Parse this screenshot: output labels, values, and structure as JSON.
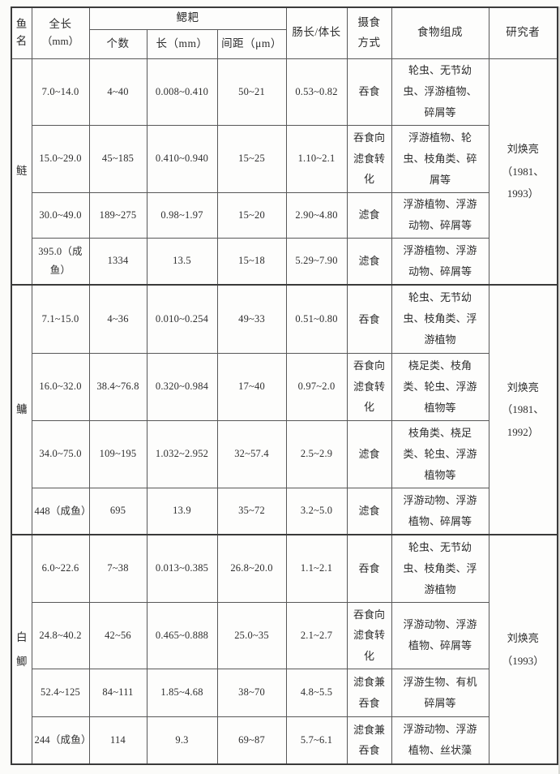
{
  "header": {
    "fish_name": "鱼名",
    "total_length": "全长",
    "total_length_unit": "（mm）",
    "gill_raker": "鳃耙",
    "raker_count": "个数",
    "raker_length": "长（mm）",
    "raker_spacing": "间距（μm）",
    "gut_body_ratio": "肠长/体长",
    "feeding_mode": "摄食方式",
    "food_composition": "食物组成",
    "researcher": "研究者"
  },
  "sections": [
    {
      "fish": "鲢",
      "researcher_name": "刘焕亮",
      "researcher_years": "（1981、1993）",
      "rows": [
        {
          "total_length": "7.0~14.0",
          "raker_count": "4~40",
          "raker_length": "0.008~0.410",
          "raker_spacing": "50~21",
          "gut_body_ratio": "0.53~0.82",
          "feeding_mode": "吞食",
          "food": "轮虫、无节幼虫、浮游植物、碎屑等"
        },
        {
          "total_length": "15.0~29.0",
          "raker_count": "45~185",
          "raker_length": "0.410~0.940",
          "raker_spacing": "15~25",
          "gut_body_ratio": "1.10~2.1",
          "feeding_mode": "吞食向滤食转化",
          "food": "浮游植物、轮虫、枝角类、碎屑等"
        },
        {
          "total_length": "30.0~49.0",
          "raker_count": "189~275",
          "raker_length": "0.98~1.97",
          "raker_spacing": "15~20",
          "gut_body_ratio": "2.90~4.80",
          "feeding_mode": "滤食",
          "food": "浮游植物、浮游动物、碎屑等"
        },
        {
          "total_length": "395.0（成鱼）",
          "raker_count": "1334",
          "raker_length": "13.5",
          "raker_spacing": "15~18",
          "gut_body_ratio": "5.29~7.90",
          "feeding_mode": "滤食",
          "food": "浮游植物、浮游动物、碎屑等"
        }
      ]
    },
    {
      "fish": "鳙",
      "researcher_name": "刘焕亮",
      "researcher_years": "（1981、1992）",
      "rows": [
        {
          "total_length": "7.1~15.0",
          "raker_count": "4~36",
          "raker_length": "0.010~0.254",
          "raker_spacing": "49~33",
          "gut_body_ratio": "0.51~0.80",
          "feeding_mode": "吞食",
          "food": "轮虫、无节幼虫、枝角类、浮游植物"
        },
        {
          "total_length": "16.0~32.0",
          "raker_count": "38.4~76.8",
          "raker_length": "0.320~0.984",
          "raker_spacing": "17~40",
          "gut_body_ratio": "0.97~2.0",
          "feeding_mode": "吞食向滤食转化",
          "food": "桡足类、枝角类、轮虫、浮游植物等"
        },
        {
          "total_length": "34.0~75.0",
          "raker_count": "109~195",
          "raker_length": "1.032~2.952",
          "raker_spacing": "32~57.4",
          "gut_body_ratio": "2.5~2.9",
          "feeding_mode": "滤食",
          "food": "枝角类、桡足类、轮虫、浮游植物等"
        },
        {
          "total_length": "448（成鱼）",
          "raker_count": "695",
          "raker_length": "13.9",
          "raker_spacing": "35~72",
          "gut_body_ratio": "3.2~5.0",
          "feeding_mode": "滤食",
          "food": "浮游动物、浮游植物、碎屑等"
        }
      ]
    },
    {
      "fish": "白鲫",
      "researcher_name": "刘焕亮",
      "researcher_years": "（1993）",
      "rows": [
        {
          "total_length": "6.0~22.6",
          "raker_count": "7~38",
          "raker_length": "0.013~0.385",
          "raker_spacing": "26.8~20.0",
          "gut_body_ratio": "1.1~2.1",
          "feeding_mode": "吞食",
          "food": "轮虫、无节幼虫、枝角类、浮游植物"
        },
        {
          "total_length": "24.8~40.2",
          "raker_count": "42~56",
          "raker_length": "0.465~0.888",
          "raker_spacing": "25.0~35",
          "gut_body_ratio": "2.1~2.7",
          "feeding_mode": "吞食向滤食转化",
          "food": "浮游动物、浮游植物、碎屑等"
        },
        {
          "total_length": "52.4~125",
          "raker_count": "84~111",
          "raker_length": "1.85~4.68",
          "raker_spacing": "38~70",
          "gut_body_ratio": "4.8~5.5",
          "feeding_mode": "滤食兼吞食",
          "food": "浮游生物、有机碎屑等"
        },
        {
          "total_length": "244（成鱼）",
          "raker_count": "114",
          "raker_length": "9.3",
          "raker_spacing": "69~87",
          "gut_body_ratio": "5.7~6.1",
          "feeding_mode": "滤食兼吞食",
          "food": "浮游动物、浮游植物、丝状藻"
        }
      ]
    }
  ]
}
